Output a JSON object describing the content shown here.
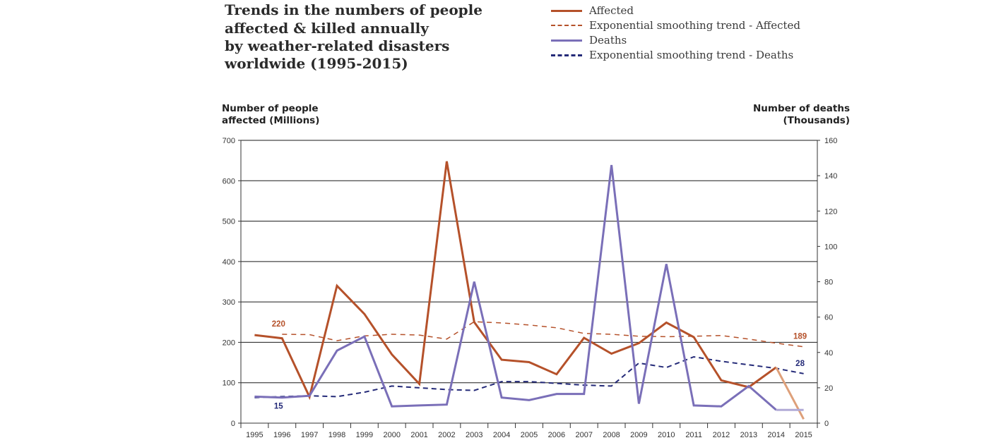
{
  "title_lines": [
    "Trends in the numbers of people",
    "affected & killed annually",
    "by weather-related disasters",
    "worldwide (1995-2015)"
  ],
  "legend": [
    {
      "label": "Affected",
      "color": "#b5512a",
      "style": "solid"
    },
    {
      "label": "Exponential smoothing trend - Affected",
      "color": "#b5512a",
      "style": "dashed"
    },
    {
      "label": "Deaths",
      "color": "#7a6fb8",
      "style": "solid"
    },
    {
      "label": "Exponential smoothing trend - Deaths",
      "color": "#242a78",
      "style": "dashed"
    }
  ],
  "left_axis_title": [
    "Number of people",
    "affected (Millions)"
  ],
  "right_axis_title": [
    "Number of deaths",
    "(Thousands)"
  ],
  "chart_data": {
    "type": "line",
    "x": [
      1995,
      1996,
      1997,
      1998,
      1999,
      2000,
      2001,
      2002,
      2003,
      2004,
      2005,
      2006,
      2007,
      2008,
      2009,
      2010,
      2011,
      2012,
      2013,
      2014,
      2015
    ],
    "x_labels": [
      "1995",
      "1996",
      "1997",
      "1998",
      "1999",
      "2000",
      "2001",
      "2002",
      "2003",
      "2004",
      "2005",
      "2006",
      "2007",
      "2008",
      "2009",
      "2010",
      "2011",
      "2012",
      "2013",
      "2014",
      "2015"
    ],
    "ylim_left": [
      0,
      700
    ],
    "yticks_left": [
      0,
      100,
      200,
      300,
      400,
      500,
      600,
      700
    ],
    "ylim_right": [
      0,
      160
    ],
    "yticks_right": [
      0,
      20,
      40,
      60,
      80,
      100,
      120,
      140,
      160
    ],
    "grid": true,
    "series": [
      {
        "name": "Affected",
        "axis": "left",
        "color": "#b5512a",
        "style": "solid",
        "values": [
          218,
          210,
          65,
          340,
          270,
          170,
          97,
          648,
          250,
          157,
          151,
          121,
          211,
          172,
          198,
          249,
          213,
          106,
          89,
          138,
          10
        ],
        "provisional_from_index": 19,
        "provisional_color": "#dea07a"
      },
      {
        "name": "Exponential smoothing trend - Affected",
        "axis": "left",
        "color": "#b5512a",
        "style": "dashed",
        "values": [
          null,
          220,
          219,
          204,
          216,
          220,
          218,
          208,
          251,
          248,
          243,
          236,
          222,
          220,
          215,
          214,
          215,
          217,
          208,
          198,
          189
        ]
      },
      {
        "name": "Deaths",
        "axis": "right",
        "color": "#7a6fb8",
        "style": "solid",
        "values": [
          15,
          14.5,
          15.5,
          41,
          49,
          9.5,
          10,
          10.5,
          80,
          14.5,
          13,
          16.5,
          16.5,
          146,
          11,
          90,
          10,
          9.5,
          21,
          7.5,
          7.5
        ],
        "provisional_from_index": 19,
        "provisional_color": "#b1aad6"
      },
      {
        "name": "Exponential smoothing trend - Deaths",
        "axis": "right",
        "color": "#242a78",
        "style": "dashed",
        "values": [
          14.5,
          15,
          15.5,
          15,
          17.5,
          21,
          20,
          19,
          18.5,
          23.5,
          23.5,
          22.5,
          21.5,
          21,
          34,
          31.5,
          37.5,
          35,
          33,
          31,
          28
        ]
      }
    ],
    "annotations": [
      {
        "text": "220",
        "color": "#b5512a",
        "series": 1,
        "index": 1,
        "pos": "above"
      },
      {
        "text": "189",
        "color": "#b5512a",
        "series": 1,
        "index": 20,
        "pos": "above"
      },
      {
        "text": "15",
        "color": "#242a78",
        "series": 3,
        "index": 1,
        "pos": "below"
      },
      {
        "text": "28",
        "color": "#242a78",
        "series": 3,
        "index": 20,
        "pos": "above"
      }
    ]
  }
}
